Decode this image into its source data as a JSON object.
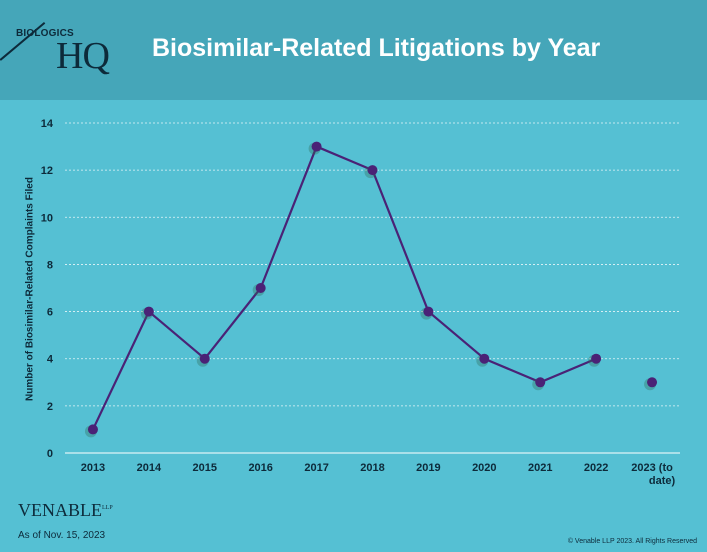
{
  "header": {
    "logo_top": "BIOLOGICS",
    "logo_hq": "HQ",
    "title": "Biosimilar-Related Litigations by Year"
  },
  "chart_data": {
    "type": "line",
    "title": "Biosimilar-Related Litigations by Year",
    "xlabel": "",
    "ylabel": "Number of Biosimilar-Related  Complaints Filed",
    "categories": [
      "2013",
      "2014",
      "2015",
      "2016",
      "2017",
      "2018",
      "2019",
      "2020",
      "2021",
      "2022",
      "2023 (to date)"
    ],
    "category_lines": [
      [
        "2013"
      ],
      [
        "2014"
      ],
      [
        "2015"
      ],
      [
        "2016"
      ],
      [
        "2017"
      ],
      [
        "2018"
      ],
      [
        "2019"
      ],
      [
        "2020"
      ],
      [
        "2021"
      ],
      [
        "2022"
      ],
      [
        "2023 (to",
        "date)"
      ]
    ],
    "series": [
      {
        "values": [
          1,
          6,
          4,
          7,
          13,
          12,
          6,
          4,
          3,
          4,
          3
        ]
      }
    ],
    "line_connected_through": "2022",
    "ylim": [
      0,
      14
    ],
    "yticks": [
      0,
      2,
      4,
      6,
      8,
      10,
      12,
      14
    ],
    "grid": true,
    "colors": {
      "line": "#4a2276",
      "marker": "#4a2276",
      "grid": "#ffffff",
      "axis_text": "#0d2a3a"
    }
  },
  "footer": {
    "brand": "VENABLE",
    "brand_suffix": "LLP",
    "as_of": "As of Nov. 15, 2023",
    "copyright": "© Venable LLP 2023. All Rights Reserved"
  }
}
